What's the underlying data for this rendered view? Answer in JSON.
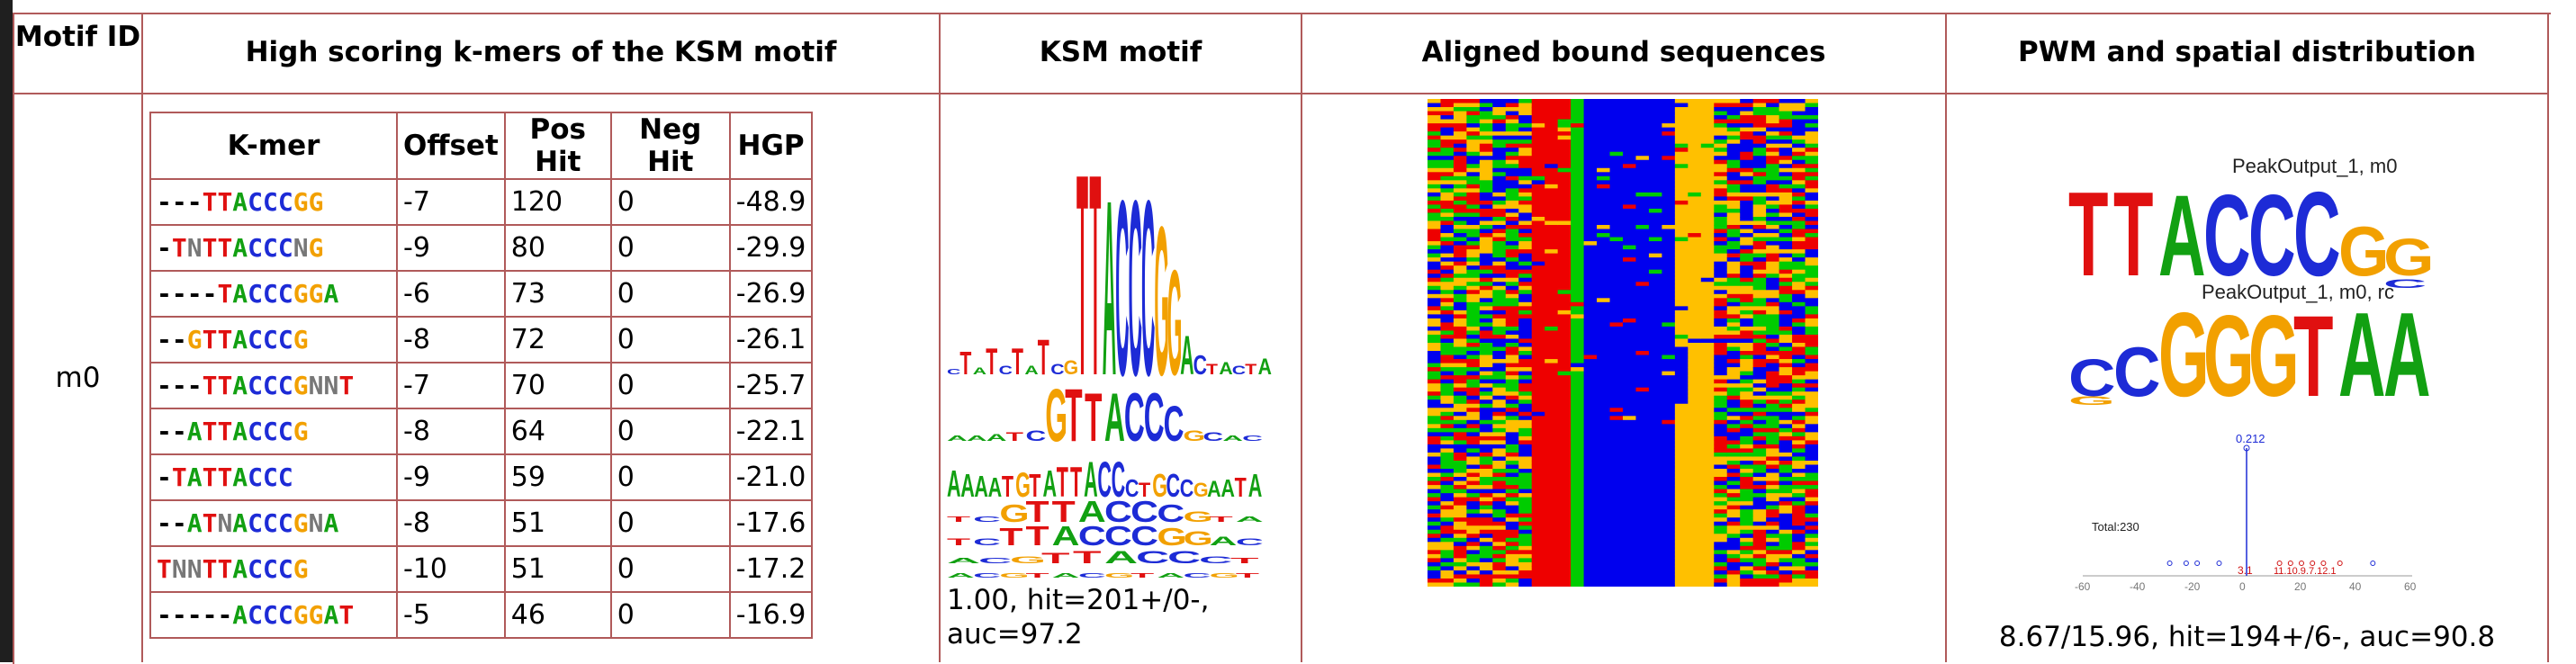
{
  "headers": {
    "motif_id": "Motif ID",
    "kmers": "High scoring k-mers of the KSM motif",
    "ksm_motif": "KSM motif",
    "aligned": "Aligned bound sequences",
    "pwm": "PWM and spatial distribution"
  },
  "row": {
    "motif_id": "m0",
    "ksm_caption": "1.00, hit=201+/0-, auc=97.2",
    "pwm_caption": "8.67/15.96, hit=194+/6-, auc=90.8"
  },
  "kmer_table": {
    "columns": [
      "K-mer",
      "Offset",
      "Pos Hit",
      "Neg Hit",
      "HGP"
    ],
    "rows": [
      {
        "kmer": "---TTACCCGG",
        "offset": "-7",
        "pos": "120",
        "neg": "0",
        "hgp": "-48.9"
      },
      {
        "kmer": "-TNTTACCCNG",
        "offset": "-9",
        "pos": "80",
        "neg": "0",
        "hgp": "-29.9"
      },
      {
        "kmer": "----TACCCGGA",
        "offset": "-6",
        "pos": "73",
        "neg": "0",
        "hgp": "-26.9"
      },
      {
        "kmer": "--GTTACCCG",
        "offset": "-8",
        "pos": "72",
        "neg": "0",
        "hgp": "-26.1"
      },
      {
        "kmer": "---TTACCCGNNT",
        "offset": "-7",
        "pos": "70",
        "neg": "0",
        "hgp": "-25.7"
      },
      {
        "kmer": "--ATTACCCG",
        "offset": "-8",
        "pos": "64",
        "neg": "0",
        "hgp": "-22.1"
      },
      {
        "kmer": "-TATTACCC",
        "offset": "-9",
        "pos": "59",
        "neg": "0",
        "hgp": "-21.0"
      },
      {
        "kmer": "--ATNACCCGNA",
        "offset": "-8",
        "pos": "51",
        "neg": "0",
        "hgp": "-17.6"
      },
      {
        "kmer": "TNNTTACCCG",
        "offset": "-10",
        "pos": "51",
        "neg": "0",
        "hgp": "-17.2"
      },
      {
        "kmer": "-----ACCCGGAT",
        "offset": "-5",
        "pos": "46",
        "neg": "0",
        "hgp": "-16.9"
      }
    ]
  },
  "pwm_panel": {
    "logo1_label": "PeakOutput_1, m0",
    "logo1_seq": "TTACCCGG",
    "logo2_label": "PeakOutput_1, m0, rc",
    "logo2_seq": "CCGGGTAA",
    "total_label": "Total:230",
    "peak_value": "0.212",
    "peak_small_label": "3.1",
    "cluster_label": "11.10.9.7.12.1",
    "xticks": [
      "-60",
      "-40",
      "-20",
      "0",
      "20",
      "40",
      "60"
    ]
  },
  "colors": {
    "A": "#12a012",
    "C": "#1d2bd6",
    "G": "#f2a000",
    "T": "#e01010",
    "border": "#b05a5a"
  }
}
